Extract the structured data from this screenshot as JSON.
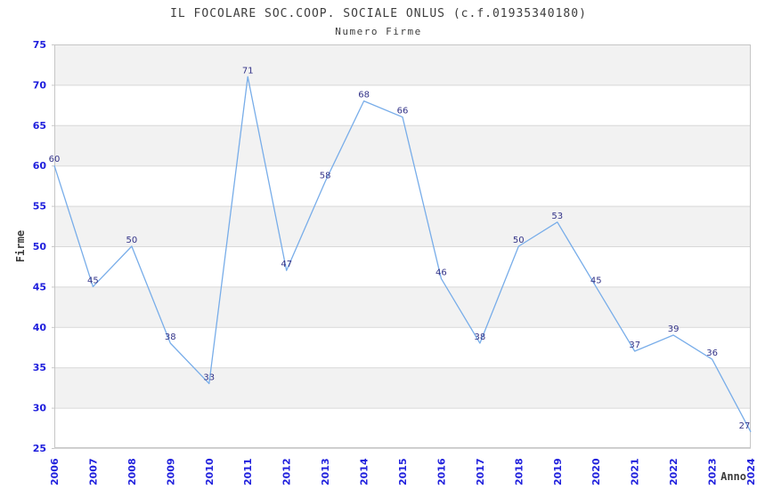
{
  "chart_data": {
    "type": "line",
    "title": "IL FOCOLARE SOC.COOP. SOCIALE ONLUS (c.f.01935340180)",
    "subtitle": "Numero Firme",
    "xlabel": "Anno",
    "ylabel": "Firme",
    "categories": [
      "2006",
      "2007",
      "2008",
      "2009",
      "2010",
      "2011",
      "2012",
      "2013",
      "2014",
      "2015",
      "2016",
      "2017",
      "2018",
      "2019",
      "2020",
      "2021",
      "2022",
      "2023",
      "2024"
    ],
    "values": [
      60,
      45,
      50,
      38,
      33,
      71,
      47,
      58,
      68,
      66,
      46,
      38,
      50,
      53,
      45,
      37,
      39,
      36,
      27
    ],
    "ylim": [
      25,
      75
    ],
    "ytick_step": 5,
    "yticks": [
      25,
      30,
      35,
      40,
      45,
      50,
      55,
      60,
      65,
      70,
      75
    ],
    "grid": "horizontal",
    "alternating_bands": true,
    "legend": "none",
    "point_labels": true,
    "colors": {
      "line": "#78ade9",
      "tick_label": "#2020dd",
      "point_label": "#333388",
      "title_text": "#3d3d3d",
      "band": "#f2f2f2",
      "grid": "#d8d8d8",
      "border": "#c6c6c6",
      "background": "#ffffff"
    }
  }
}
